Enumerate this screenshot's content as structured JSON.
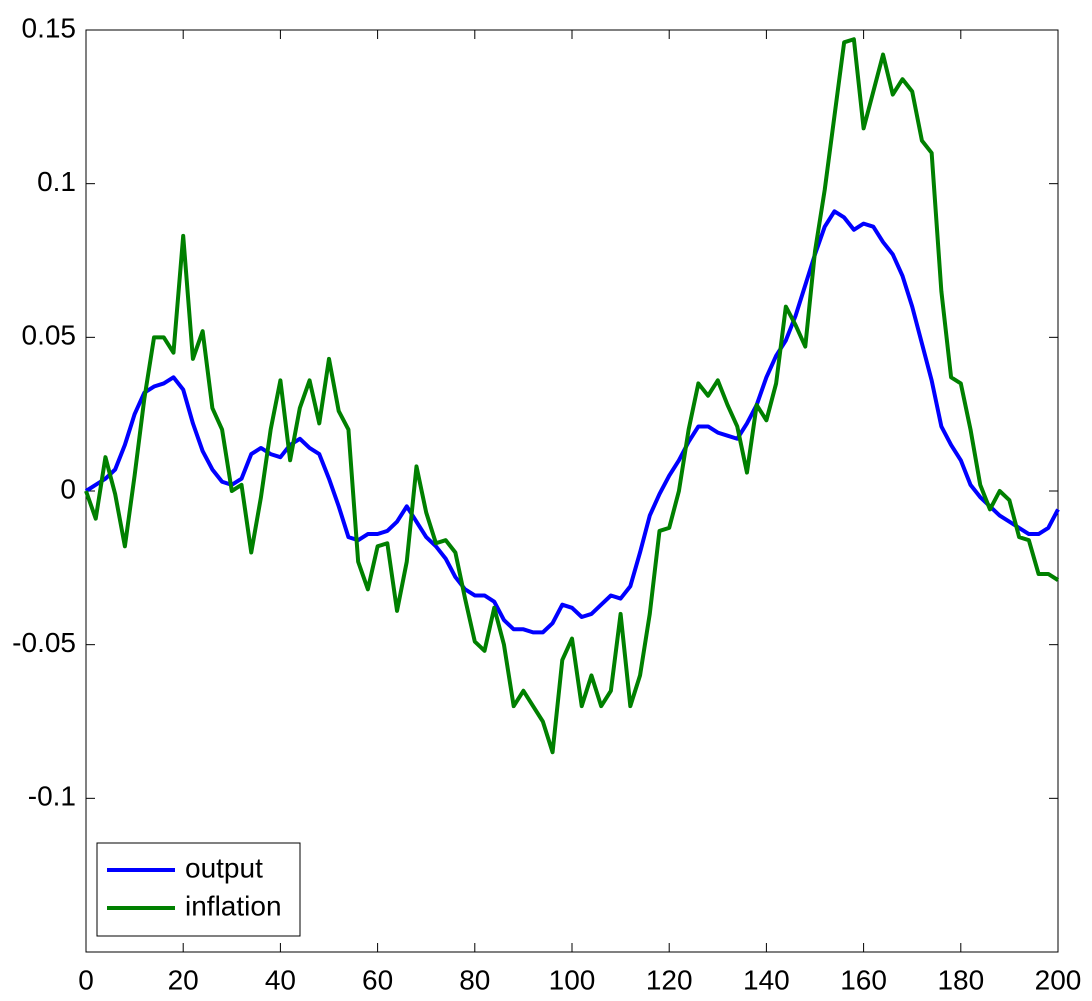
{
  "chart_data": {
    "type": "line",
    "x": [
      0,
      2,
      4,
      6,
      8,
      10,
      12,
      14,
      16,
      18,
      20,
      22,
      24,
      26,
      28,
      30,
      32,
      34,
      36,
      38,
      40,
      42,
      44,
      46,
      48,
      50,
      52,
      54,
      56,
      58,
      60,
      62,
      64,
      66,
      68,
      70,
      72,
      74,
      76,
      78,
      80,
      82,
      84,
      86,
      88,
      90,
      92,
      94,
      96,
      98,
      100,
      102,
      104,
      106,
      108,
      110,
      112,
      114,
      116,
      118,
      120,
      122,
      124,
      126,
      128,
      130,
      132,
      134,
      136,
      138,
      140,
      142,
      144,
      146,
      148,
      150,
      152,
      154,
      156,
      158,
      160,
      162,
      164,
      166,
      168,
      170,
      172,
      174,
      176,
      178,
      180,
      182,
      184,
      186,
      188,
      190,
      192,
      194,
      196,
      198,
      200
    ],
    "series": [
      {
        "name": "output",
        "color": "#0000ff",
        "values": [
          0,
          0.002,
          0.004,
          0.007,
          0.015,
          0.025,
          0.032,
          0.034,
          0.035,
          0.037,
          0.033,
          0.022,
          0.013,
          0.007,
          0.003,
          0.002,
          0.004,
          0.012,
          0.014,
          0.012,
          0.011,
          0.015,
          0.017,
          0.014,
          0.012,
          0.004,
          -0.005,
          -0.015,
          -0.016,
          -0.014,
          -0.014,
          -0.013,
          -0.01,
          -0.005,
          -0.01,
          -0.015,
          -0.018,
          -0.022,
          -0.028,
          -0.032,
          -0.034,
          -0.034,
          -0.036,
          -0.042,
          -0.045,
          -0.045,
          -0.046,
          -0.046,
          -0.043,
          -0.037,
          -0.038,
          -0.041,
          -0.04,
          -0.037,
          -0.034,
          -0.035,
          -0.031,
          -0.02,
          -0.008,
          -0.001,
          0.005,
          0.01,
          0.016,
          0.021,
          0.021,
          0.019,
          0.018,
          0.017,
          0.022,
          0.028,
          0.037,
          0.044,
          0.049,
          0.057,
          0.067,
          0.077,
          0.086,
          0.091,
          0.089,
          0.085,
          0.087,
          0.086,
          0.081,
          0.077,
          0.07,
          0.06,
          0.048,
          0.036,
          0.021,
          0.015,
          0.01,
          0.002,
          -0.002,
          -0.005,
          -0.008,
          -0.01,
          -0.012,
          -0.014,
          -0.014,
          -0.012,
          -0.006
        ]
      },
      {
        "name": "inflation",
        "color": "#008000",
        "values": [
          0,
          -0.009,
          0.011,
          -0.001,
          -0.018,
          0.005,
          0.03,
          0.05,
          0.05,
          0.045,
          0.083,
          0.043,
          0.052,
          0.027,
          0.02,
          0,
          0.002,
          -0.02,
          -0.002,
          0.02,
          0.036,
          0.01,
          0.027,
          0.036,
          0.022,
          0.043,
          0.026,
          0.02,
          -0.023,
          -0.032,
          -0.018,
          -0.017,
          -0.039,
          -0.023,
          0.008,
          -0.007,
          -0.017,
          -0.016,
          -0.02,
          -0.035,
          -0.049,
          -0.052,
          -0.038,
          -0.05,
          -0.07,
          -0.065,
          -0.07,
          -0.075,
          -0.085,
          -0.055,
          -0.048,
          -0.07,
          -0.06,
          -0.07,
          -0.065,
          -0.04,
          -0.07,
          -0.06,
          -0.04,
          -0.013,
          -0.012,
          0,
          0.02,
          0.035,
          0.031,
          0.036,
          0.028,
          0.021,
          0.006,
          0.028,
          0.023,
          0.035,
          0.06,
          0.054,
          0.047,
          0.078,
          0.098,
          0.122,
          0.146,
          0.147,
          0.118,
          0.13,
          0.142,
          0.129,
          0.134,
          0.13,
          0.114,
          0.11,
          0.065,
          0.037,
          0.035,
          0.02,
          0.002,
          -0.006,
          0,
          -0.003,
          -0.015,
          -0.016,
          -0.027,
          -0.027,
          -0.029
        ]
      }
    ],
    "xlim": [
      0,
      200
    ],
    "xticks": [
      0,
      20,
      40,
      60,
      80,
      100,
      120,
      140,
      160,
      180,
      200
    ],
    "ylim": [
      -0.15,
      0.15
    ],
    "yticks": [
      -0.1,
      -0.05,
      0,
      0.05,
      0.1,
      0.15
    ],
    "legend": "lower-left"
  }
}
